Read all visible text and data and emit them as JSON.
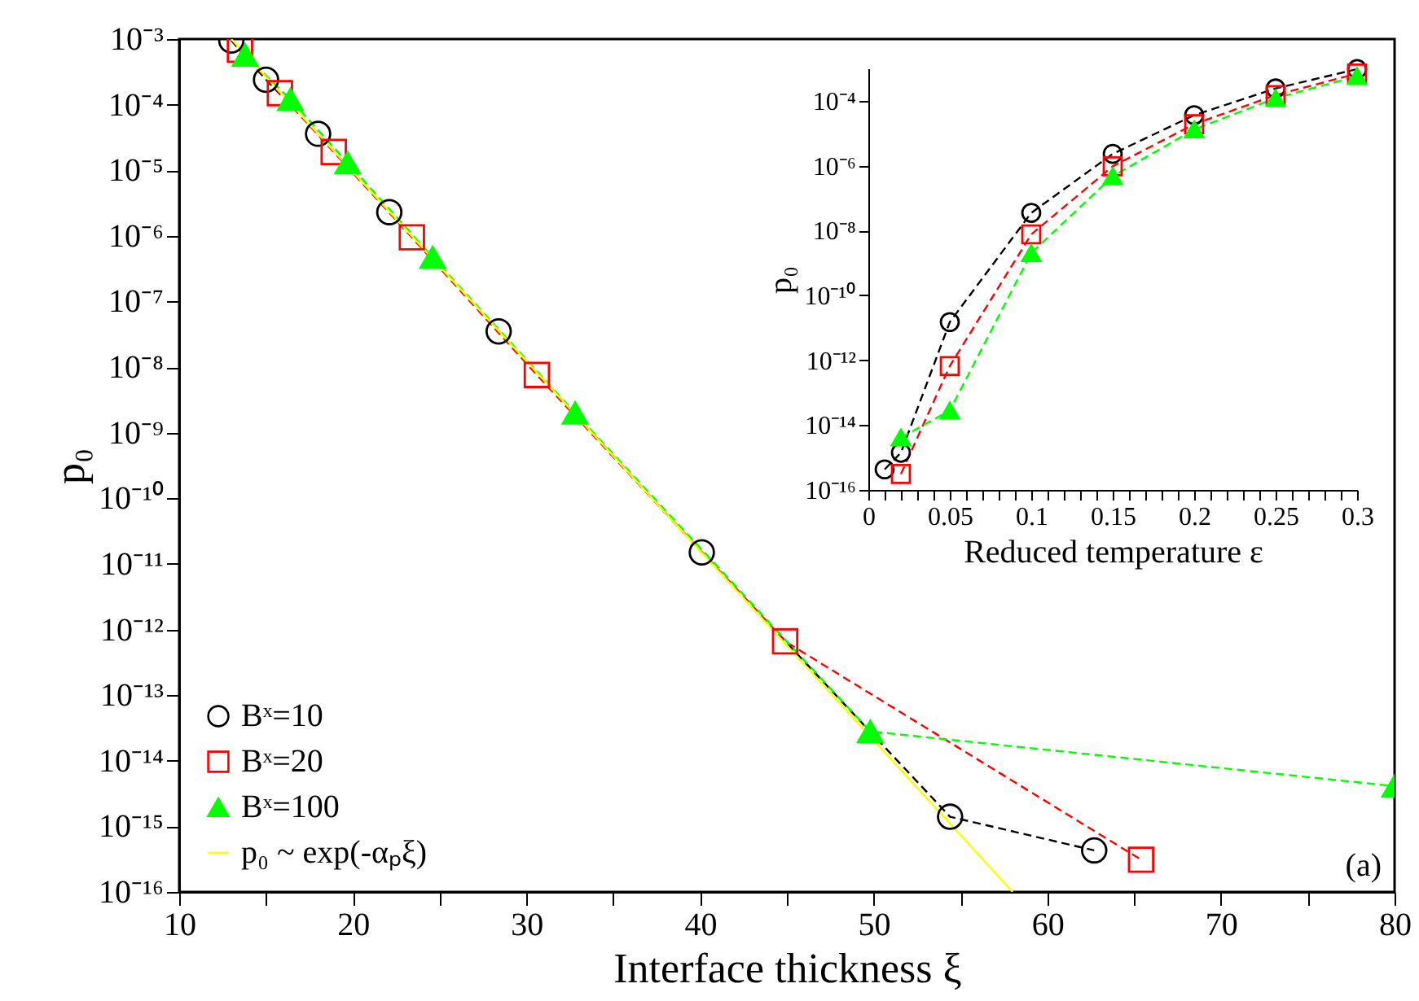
{
  "chart_data": [
    {
      "type": "line",
      "xlabel": "Interface thickness ξ",
      "ylabel": "p₀",
      "log": true,
      "legend": "bottom left",
      "line_style": "dashed",
      "xlim": [
        10,
        80
      ],
      "xticks": [
        10,
        {
          "value": 15,
          "label": null
        },
        20,
        {
          "value": 25,
          "label": null
        },
        30,
        {
          "value": 35,
          "label": null
        },
        40,
        {
          "value": 45,
          "label": null
        },
        50,
        {
          "value": 55,
          "label": null
        },
        60,
        {
          "value": 65,
          "label": null
        },
        70,
        {
          "value": 75,
          "label": null
        },
        80
      ],
      "ylim": [
        1e-16,
        0.001
      ],
      "yticks": [
        {
          "value": 1e-16,
          "label": "10⁻¹⁶"
        },
        {
          "value": 1e-15,
          "label": "10⁻¹⁵"
        },
        {
          "value": 1e-14,
          "label": "10⁻¹⁴"
        },
        {
          "value": 1e-13,
          "label": "10⁻¹³"
        },
        {
          "value": 1e-12,
          "label": "10⁻¹²"
        },
        {
          "value": 1e-11,
          "label": "10⁻¹¹"
        },
        {
          "value": 1e-10,
          "label": "10⁻¹⁰"
        },
        {
          "value": 1e-09,
          "label": "10⁻⁹"
        },
        {
          "value": 1e-08,
          "label": "10⁻⁸"
        },
        {
          "value": 1e-07,
          "label": "10⁻⁷"
        },
        {
          "value": 1e-06,
          "label": "10⁻⁶"
        },
        {
          "value": 1e-05,
          "label": "10⁻⁵"
        },
        {
          "value": 0.0001,
          "label": "10⁻⁴"
        },
        {
          "value": 0.001,
          "label": "10⁻³"
        }
      ],
      "series": [
        {
          "name": "Bˣ=10",
          "color": "#000000",
          "marker": "circle",
          "x": [
            13.0,
            15.0,
            18.0,
            22.1,
            28.4,
            40.1,
            54.4,
            62.7
          ],
          "values": [
            0.00095,
            0.00024,
            3.6e-05,
            2.3e-06,
            3.5e-08,
            1.5e-11,
            1.4e-15,
            4.3e-16
          ]
        },
        {
          "name": "Bˣ=20",
          "color": "#ff0000",
          "marker": "square",
          "x": [
            13.5,
            15.8,
            18.9,
            23.4,
            30.6,
            44.9,
            65.4
          ],
          "values": [
            0.00069,
            0.00015,
            1.9e-05,
            9.5e-07,
            7.6e-09,
            6.6e-13,
            3.1e-16
          ]
        },
        {
          "name": "Bˣ=100",
          "color": "#00ff00",
          "marker": "triangle",
          "x": [
            13.8,
            16.4,
            19.7,
            24.6,
            32.8,
            49.8,
            80.0
          ],
          "values": [
            0.00057,
            0.00012,
            1.3e-05,
            4.7e-07,
            2e-09,
            2.8e-14,
            4.1e-15
          ]
        },
        {
          "name": "p₀ ~ exp(-αₚξ)",
          "color": "#ffff00",
          "marker": "none",
          "line_style": "solid",
          "x": [
            13.0,
            58.0
          ],
          "values": [
            0.001,
            1e-16
          ]
        }
      ],
      "annotations": [
        "(a)"
      ]
    },
    {
      "type": "line",
      "xlabel": "Reduced temperature ε",
      "ylabel": "p₀",
      "log": true,
      "legend": false,
      "line_style": "dashed",
      "xlim": [
        0,
        0.3
      ],
      "xticks": [
        0,
        {
          "value": 0.01,
          "label": null
        },
        {
          "value": 0.02,
          "label": null
        },
        {
          "value": 0.03,
          "label": null
        },
        {
          "value": 0.04,
          "label": null
        },
        0.05,
        {
          "value": 0.06,
          "label": null
        },
        {
          "value": 0.07,
          "label": null
        },
        {
          "value": 0.08,
          "label": null
        },
        {
          "value": 0.09,
          "label": null
        },
        0.1,
        {
          "value": 0.11,
          "label": null
        },
        {
          "value": 0.12,
          "label": null
        },
        {
          "value": 0.13,
          "label": null
        },
        {
          "value": 0.14,
          "label": null
        },
        0.15,
        {
          "value": 0.16,
          "label": null
        },
        {
          "value": 0.17,
          "label": null
        },
        {
          "value": 0.18,
          "label": null
        },
        {
          "value": 0.19,
          "label": null
        },
        0.2,
        {
          "value": 0.21,
          "label": null
        },
        {
          "value": 0.22,
          "label": null
        },
        {
          "value": 0.23,
          "label": null
        },
        {
          "value": 0.24,
          "label": null
        },
        0.25,
        {
          "value": 0.26,
          "label": null
        },
        {
          "value": 0.27,
          "label": null
        },
        {
          "value": 0.28,
          "label": null
        },
        {
          "value": 0.29,
          "label": null
        },
        0.3
      ],
      "ylim": [
        1e-16,
        0.001
      ],
      "yticks": [
        {
          "value": 1e-16,
          "label": "10⁻¹⁶"
        },
        {
          "value": 1e-14,
          "label": "10⁻¹⁴"
        },
        {
          "value": 1e-12,
          "label": "10⁻¹²"
        },
        {
          "value": 1e-10,
          "label": "10⁻¹⁰"
        },
        {
          "value": 1e-08,
          "label": "10⁻⁸"
        },
        {
          "value": 1e-06,
          "label": "10⁻⁶"
        },
        {
          "value": 0.0001,
          "label": "10⁻⁴"
        }
      ],
      "series": [
        {
          "color": "#000000",
          "marker": "circle",
          "x": [
            0.01,
            0.02,
            0.05,
            0.1,
            0.15,
            0.2,
            0.25,
            0.3
          ],
          "values": [
            4.3e-16,
            1.4e-15,
            1.5e-11,
            3.5e-08,
            2.3e-06,
            3.6e-05,
            0.00024,
            0.00095
          ]
        },
        {
          "color": "#ff0000",
          "marker": "square",
          "x": [
            0.02,
            0.05,
            0.1,
            0.15,
            0.2,
            0.25,
            0.3
          ],
          "values": [
            3.1e-16,
            6.6e-13,
            7.6e-09,
            9.5e-07,
            1.9e-05,
            0.00015,
            0.00069
          ]
        },
        {
          "color": "#00ff00",
          "marker": "triangle",
          "x": [
            0.02,
            0.05,
            0.1,
            0.15,
            0.2,
            0.25,
            0.3
          ],
          "values": [
            4.1e-15,
            2.8e-14,
            2e-09,
            4.7e-07,
            1.3e-05,
            0.00012,
            0.00057
          ]
        }
      ]
    }
  ]
}
